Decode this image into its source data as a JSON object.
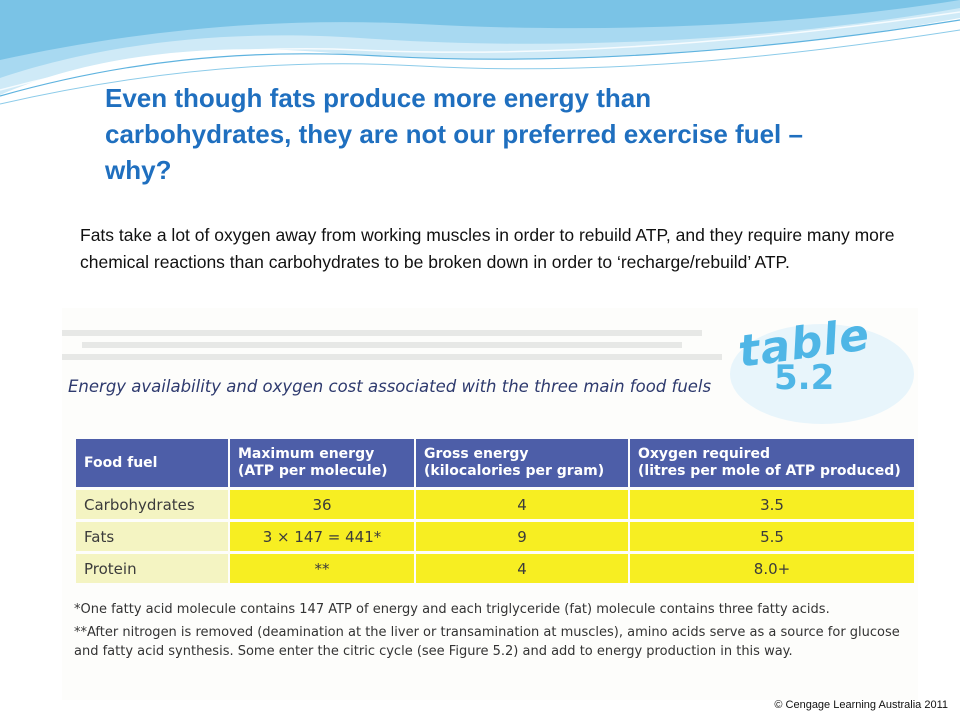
{
  "slide": {
    "title": "Even though fats produce more energy than carbohydrates, they are not our preferred exercise fuel – why?",
    "body": "Fats take a lot of oxygen away from working muscles in order to rebuild ATP, and they require many more chemical reactions than carbohydrates to be broken down in order to ‘recharge/rebuild’ ATP.",
    "copyright": "© Cengage Learning Australia 2011"
  },
  "figure": {
    "badge_word": "table",
    "badge_number": "5.2",
    "caption": "Energy availability and oxygen cost associated with the three main food fuels",
    "table": {
      "headers": [
        [
          "Food fuel",
          ""
        ],
        [
          "Maximum energy",
          "(ATP per molecule)"
        ],
        [
          "Gross energy",
          "(kilocalories per gram)"
        ],
        [
          "Oxygen required",
          "(litres per mole of ATP produced)"
        ]
      ],
      "rows": [
        [
          "Carbohydrates",
          "36",
          "4",
          "3.5"
        ],
        [
          "Fats",
          "3 × 147 = 441*",
          "9",
          "5.5"
        ],
        [
          "Protein",
          "**",
          "4",
          "8.0+"
        ]
      ]
    },
    "footnotes": [
      "*One fatty acid molecule contains 147 ATP of energy and each triglyceride (fat) molecule contains three fatty acids.",
      "**After nitrogen is removed (deamination at the liver or transamination at muscles), amino acids serve as a source for glucose and fatty acid synthesis. Some enter the citric cycle (see Figure 5.2) and add to energy production in this way."
    ]
  },
  "colors": {
    "title": "#1f6fbf",
    "header_fill": "#4d5ea8",
    "value_fill": "#f7ee22",
    "label_fill": "#f4f4c2",
    "badge": "#4fb6e6",
    "wave": "#7ac3e6"
  }
}
